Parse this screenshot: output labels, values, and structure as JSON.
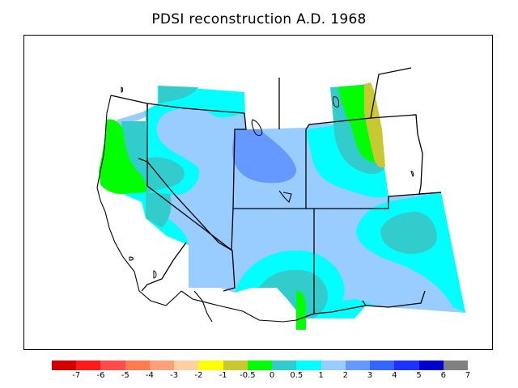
{
  "title": "PDSI reconstruction A.D. 1968",
  "legend": {
    "colors": [
      "#d40000",
      "#ff1a1a",
      "#ff4d4d",
      "#ff7a4d",
      "#ffa07a",
      "#ffd0a0",
      "#ffff00",
      "#c8c832",
      "#00ff00",
      "#33cccc",
      "#00ffff",
      "#99ccff",
      "#6699ff",
      "#3366ff",
      "#1a33ff",
      "#0000cc",
      "#808080"
    ],
    "ticks": [
      "-7",
      "-6",
      "-5",
      "-4",
      "-3",
      "-2",
      "-1",
      "-0.5",
      "0",
      "0.5",
      "1",
      "2",
      "3",
      "4",
      "5",
      "6",
      "7"
    ]
  },
  "colors": {
    "background": "#ffffff",
    "border": "#000000",
    "class_green": "#00ff00",
    "class_teal": "#33cccc",
    "class_cyan": "#00ffff",
    "class_lightblue": "#99ccff",
    "class_medblue": "#6699ff",
    "class_olive": "#c8c832"
  }
}
